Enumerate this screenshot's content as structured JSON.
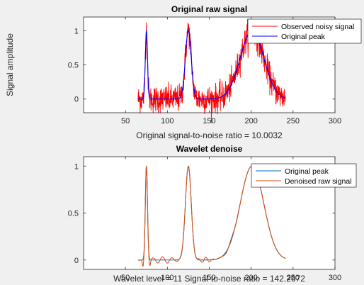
{
  "colors": {
    "figure_bg": "#f0f0f0",
    "axes_bg": "#ffffff",
    "noisy": "#ff0000",
    "peak_top": "#0000ff",
    "peak_bottom": "#0072bd",
    "denoised": "#d95319"
  },
  "chart_data": [
    {
      "type": "line",
      "title": "Original raw signal",
      "xlabel": "Original signal-to-noise ratio = 10.0032",
      "ylabel": "Signal amplitude",
      "xlim": [
        0,
        300
      ],
      "ylim": [
        -0.2,
        1.2
      ],
      "xticks": [
        50,
        100,
        150,
        200,
        250,
        300
      ],
      "xtick_labels": [
        "50",
        "100",
        "150",
        "200",
        "250",
        "300"
      ],
      "yticks": [
        0,
        0.5,
        1
      ],
      "ytick_labels": [
        "0",
        "0.5",
        "1"
      ],
      "legend_position": "top-right",
      "x_range": [
        65,
        241
      ],
      "peaks": [
        {
          "center": 75,
          "width": 1.3,
          "height": 1.0
        },
        {
          "center": 125,
          "width": 3.5,
          "height": 1.0
        },
        {
          "center": 201,
          "width": 14.0,
          "height": 1.0
        }
      ],
      "noise_std": 0.1,
      "series": [
        {
          "name": "Observed noisy signal",
          "color": "#ff0000",
          "kind": "noisy"
        },
        {
          "name": "Original peak",
          "color": "#0000ff",
          "kind": "clean"
        }
      ]
    },
    {
      "type": "line",
      "title": "Wavelet denoise",
      "xlabel": "Wavelet level = 11    Signal-to-noise ratio = 142.2672",
      "ylabel": "",
      "xlim": [
        0,
        300
      ],
      "ylim": [
        -0.1,
        1.1
      ],
      "xticks": [
        50,
        100,
        150,
        200,
        250,
        300
      ],
      "xtick_labels": [
        "50",
        "100",
        "150",
        "200",
        "250",
        "300"
      ],
      "yticks": [
        0,
        0.5,
        1
      ],
      "ytick_labels": [
        "0",
        "0.5",
        "1"
      ],
      "legend_position": "top-right",
      "x_range": [
        65,
        241
      ],
      "peaks": [
        {
          "center": 75,
          "width": 1.3,
          "height": 1.0
        },
        {
          "center": 125,
          "width": 3.5,
          "height": 1.0
        },
        {
          "center": 201,
          "width": 14.0,
          "height": 1.0
        }
      ],
      "series": [
        {
          "name": "Original peak",
          "color": "#0072bd",
          "kind": "clean"
        },
        {
          "name": "Denoised raw signal",
          "color": "#d95319",
          "kind": "denoised"
        }
      ]
    }
  ]
}
